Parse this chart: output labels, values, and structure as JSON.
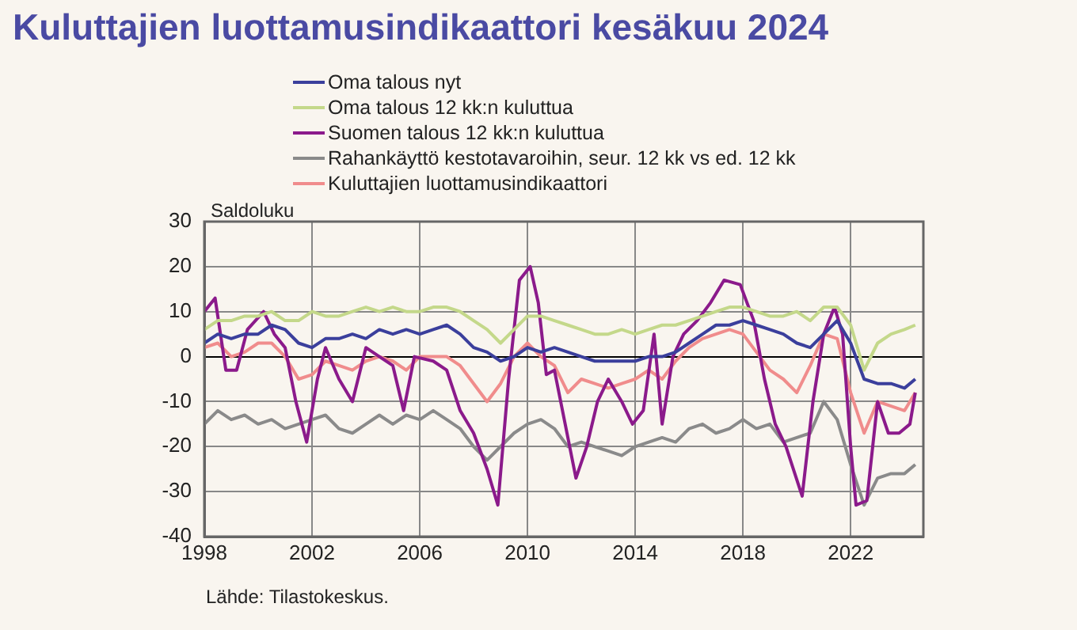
{
  "chart_data": {
    "type": "line",
    "title": "Kuluttajien luottamusindikaattori kesäkuu 2024",
    "ylabel": "Saldoluku",
    "annotations": [
      "Lähde: Tilastokeskus."
    ],
    "legend": "top",
    "grid": true,
    "marker": "none",
    "line_style": "solid",
    "xlim": [
      1998,
      2024.7
    ],
    "xticks": [
      1998,
      2002,
      2006,
      2010,
      2014,
      2018,
      2022
    ],
    "ylim": [
      -40,
      30
    ],
    "yticks": [
      -40,
      -30,
      -20,
      -10,
      0,
      10,
      20,
      30
    ],
    "x": [
      1998,
      1998.5,
      1999,
      1999.5,
      2000,
      2000.5,
      2001,
      2001.5,
      2002,
      2002.5,
      2003,
      2003.5,
      2004,
      2004.5,
      2005,
      2005.5,
      2006,
      2006.5,
      2007,
      2007.5,
      2008,
      2008.5,
      2009,
      2009.5,
      2010,
      2010.5,
      2011,
      2011.5,
      2012,
      2012.5,
      2013,
      2013.5,
      2014,
      2014.5,
      2015,
      2015.5,
      2016,
      2016.5,
      2017,
      2017.5,
      2018,
      2018.5,
      2019,
      2019.5,
      2020,
      2020.5,
      2021,
      2021.5,
      2022,
      2022.5,
      2023,
      2023.5,
      2024,
      2024.4
    ],
    "series": [
      {
        "name": "Oma talous nyt",
        "color": "#3b3f9c",
        "values": [
          3,
          5,
          4,
          5,
          5,
          7,
          6,
          3,
          2,
          4,
          4,
          5,
          4,
          6,
          5,
          6,
          5,
          6,
          7,
          5,
          2,
          1,
          -1,
          0,
          2,
          1,
          2,
          1,
          0,
          -1,
          -1,
          -1,
          -1,
          0,
          0,
          1,
          3,
          5,
          7,
          7,
          8,
          7,
          6,
          5,
          3,
          2,
          5,
          8,
          3,
          -5,
          -6,
          -6,
          -7,
          -5
        ]
      },
      {
        "name": "Oma talous 12 kk:n kuluttua",
        "color": "#c4d88a",
        "values": [
          6,
          8,
          8,
          9,
          9,
          10,
          8,
          8,
          10,
          9,
          9,
          10,
          11,
          10,
          11,
          10,
          10,
          11,
          11,
          10,
          8,
          6,
          3,
          6,
          9,
          9,
          8,
          7,
          6,
          5,
          5,
          6,
          5,
          6,
          7,
          7,
          8,
          9,
          10,
          11,
          11,
          10,
          9,
          9,
          10,
          8,
          11,
          11,
          7,
          -3,
          3,
          5,
          6,
          7
        ]
      },
      {
        "name": "Suomen talous 12 kk:n kuluttua",
        "color": "#8b1a8b",
        "x": [
          1998,
          1998.4,
          1998.8,
          1999.2,
          1999.6,
          2000.2,
          2000.6,
          2001,
          2001.4,
          2001.8,
          2002.2,
          2002.5,
          2003,
          2003.5,
          2004,
          2004.5,
          2005,
          2005.4,
          2005.8,
          2006.5,
          2007,
          2007.5,
          2008,
          2008.5,
          2008.9,
          2009.3,
          2009.7,
          2010.1,
          2010.4,
          2010.7,
          2011,
          2011.4,
          2011.8,
          2012.2,
          2012.6,
          2013,
          2013.5,
          2013.9,
          2014.3,
          2014.7,
          2015,
          2015.4,
          2015.8,
          2016.3,
          2016.8,
          2017.3,
          2017.9,
          2018.4,
          2018.8,
          2019.2,
          2019.6,
          2020.2,
          2020.6,
          2021,
          2021.4,
          2021.7,
          2022,
          2022.2,
          2022.6,
          2023,
          2023.4,
          2023.8,
          2024.2,
          2024.4
        ],
        "values": [
          10,
          13,
          -3,
          -3,
          6,
          10,
          5,
          2,
          -10,
          -19,
          -5,
          2,
          -5,
          -10,
          2,
          0,
          -2,
          -12,
          0,
          -1,
          -3,
          -12,
          -17,
          -25,
          -33,
          -5,
          17,
          20,
          12,
          -4,
          -3,
          -15,
          -27,
          -20,
          -10,
          -5,
          -10,
          -15,
          -12,
          5,
          -15,
          0,
          5,
          8,
          12,
          17,
          16,
          8,
          -5,
          -15,
          -20,
          -31,
          -10,
          5,
          11,
          5,
          -20,
          -33,
          -32,
          -10,
          -17,
          -17,
          -15,
          -8
        ]
      },
      {
        "name": "Rahankäyttö kestotavaroihin, seur. 12 kk vs ed. 12 kk",
        "color": "#8a8a8a",
        "values": [
          -15,
          -12,
          -14,
          -13,
          -15,
          -14,
          -16,
          -15,
          -14,
          -13,
          -16,
          -17,
          -15,
          -13,
          -15,
          -13,
          -14,
          -12,
          -14,
          -16,
          -20,
          -23,
          -20,
          -17,
          -15,
          -14,
          -16,
          -20,
          -19,
          -20,
          -21,
          -22,
          -20,
          -19,
          -18,
          -19,
          -16,
          -15,
          -17,
          -16,
          -14,
          -16,
          -15,
          -19,
          -18,
          -17,
          -10,
          -14,
          -24,
          -33,
          -27,
          -26,
          -26,
          -24
        ]
      },
      {
        "name": "Kuluttajien luottamusindikaattori",
        "color": "#f08c8c",
        "values": [
          2,
          3,
          0,
          1,
          3,
          3,
          0,
          -5,
          -4,
          -1,
          -2,
          -3,
          -1,
          0,
          -1,
          -3,
          0,
          0,
          0,
          -2,
          -6,
          -10,
          -6,
          0,
          3,
          0,
          -2,
          -8,
          -5,
          -6,
          -7,
          -6,
          -5,
          -3,
          -5,
          -1,
          2,
          4,
          5,
          6,
          5,
          1,
          -3,
          -5,
          -8,
          -2,
          5,
          4,
          -8,
          -17,
          -10,
          -11,
          -12,
          -8
        ]
      }
    ]
  }
}
